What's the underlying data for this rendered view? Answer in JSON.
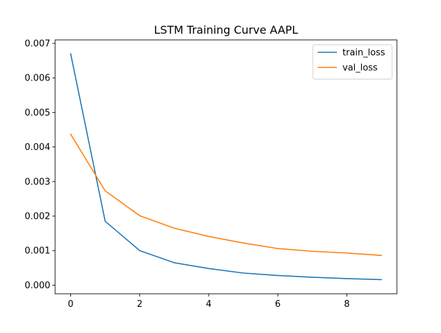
{
  "chart_data": {
    "type": "line",
    "title": "LSTM Training Curve AAPL",
    "xlabel": "",
    "ylabel": "",
    "x": [
      0,
      1,
      2,
      3,
      4,
      5,
      6,
      7,
      8,
      9
    ],
    "series": [
      {
        "name": "train_loss",
        "color": "#1f77b4",
        "values": [
          0.0067,
          0.00185,
          0.001,
          0.00065,
          0.00048,
          0.00035,
          0.00028,
          0.00023,
          0.00019,
          0.00016
        ]
      },
      {
        "name": "val_loss",
        "color": "#ff7f0e",
        "values": [
          0.00437,
          0.00273,
          0.00201,
          0.00165,
          0.00141,
          0.00122,
          0.00106,
          0.00098,
          0.00093,
          0.00086
        ]
      }
    ],
    "xlim": [
      -0.45,
      9.45
    ],
    "ylim": [
      -0.00025,
      0.0071
    ],
    "xticks": [
      0,
      2,
      4,
      6,
      8
    ],
    "xtick_labels": [
      "0",
      "2",
      "4",
      "6",
      "8"
    ],
    "yticks": [
      0,
      0.001,
      0.002,
      0.003,
      0.004,
      0.005,
      0.006,
      0.007
    ],
    "ytick_labels": [
      "0.000",
      "0.001",
      "0.002",
      "0.003",
      "0.004",
      "0.005",
      "0.006",
      "0.007"
    ],
    "grid": false,
    "legend_position": "top-right"
  }
}
